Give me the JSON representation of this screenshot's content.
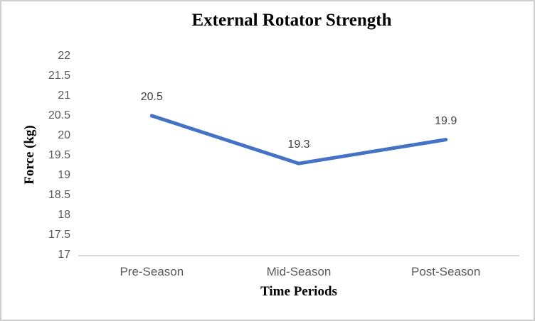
{
  "chart_data": {
    "type": "line",
    "title": "External Rotator Strength",
    "xlabel": "Time Periods",
    "ylabel": "Force (kg)",
    "categories": [
      "Pre-Season",
      "Mid-Season",
      "Post-Season"
    ],
    "series": [
      {
        "name": "External Rotator Strength",
        "values": [
          20.5,
          19.3,
          19.9
        ]
      }
    ],
    "data_labels": [
      "20.5",
      "19.3",
      "19.9"
    ],
    "ylim": [
      17,
      22
    ],
    "ytick_step": 0.5,
    "yticks": [
      "22",
      "21.5",
      "21",
      "20.5",
      "20",
      "19.5",
      "19",
      "18.5",
      "18",
      "17.5",
      "17"
    ],
    "grid": false,
    "legend": "none",
    "markers": "none",
    "colors": {
      "line": "#4472C4",
      "axis_line": "#D9D9D9",
      "tick_label": "#595959",
      "data_label": "#404040",
      "frame_border": "#CFCFCF",
      "background": "#FFFFFF"
    }
  }
}
